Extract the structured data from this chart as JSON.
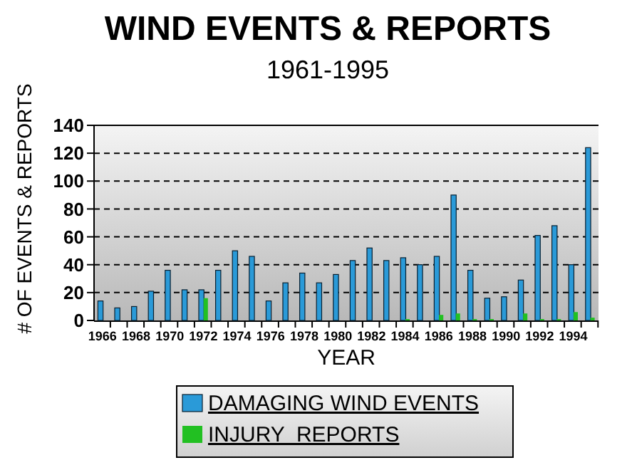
{
  "chart_data": {
    "type": "bar",
    "title": "WIND EVENTS & REPORTS",
    "subtitle": "1961-1995",
    "xlabel": "YEAR",
    "ylabel": "# OF EVENTS & REPORTS",
    "categories": [
      "1966",
      null,
      "1968",
      null,
      "1970",
      null,
      "1972",
      null,
      "1974",
      null,
      "1976",
      null,
      "1978",
      null,
      "1980",
      null,
      "1982",
      null,
      "1984",
      null,
      "1986",
      null,
      "1988",
      null,
      "1990",
      null,
      "1992",
      null,
      "1994",
      null
    ],
    "series": [
      {
        "name": "DAMAGING WIND EVENTS",
        "color": "#2a9ad8",
        "values": [
          14,
          9,
          10,
          21,
          36,
          22,
          22,
          36,
          50,
          46,
          14,
          27,
          34,
          27,
          33,
          43,
          52,
          43,
          45,
          40,
          46,
          90,
          36,
          16,
          17,
          29,
          61,
          68,
          40,
          124
        ]
      },
      {
        "name": "INJURY  REPORTS",
        "color": "#22c022",
        "values": [
          0,
          0,
          0,
          0,
          0,
          0,
          16,
          0,
          0,
          0,
          0,
          0,
          0,
          0,
          0,
          0,
          0,
          0,
          1,
          0,
          4,
          5,
          1,
          1,
          0,
          5,
          1,
          1,
          6,
          2
        ]
      }
    ],
    "ylim": [
      0,
      140
    ],
    "yticks": [
      0,
      20,
      40,
      60,
      80,
      100,
      120,
      140
    ],
    "grid": "y",
    "legend": "bottom"
  }
}
